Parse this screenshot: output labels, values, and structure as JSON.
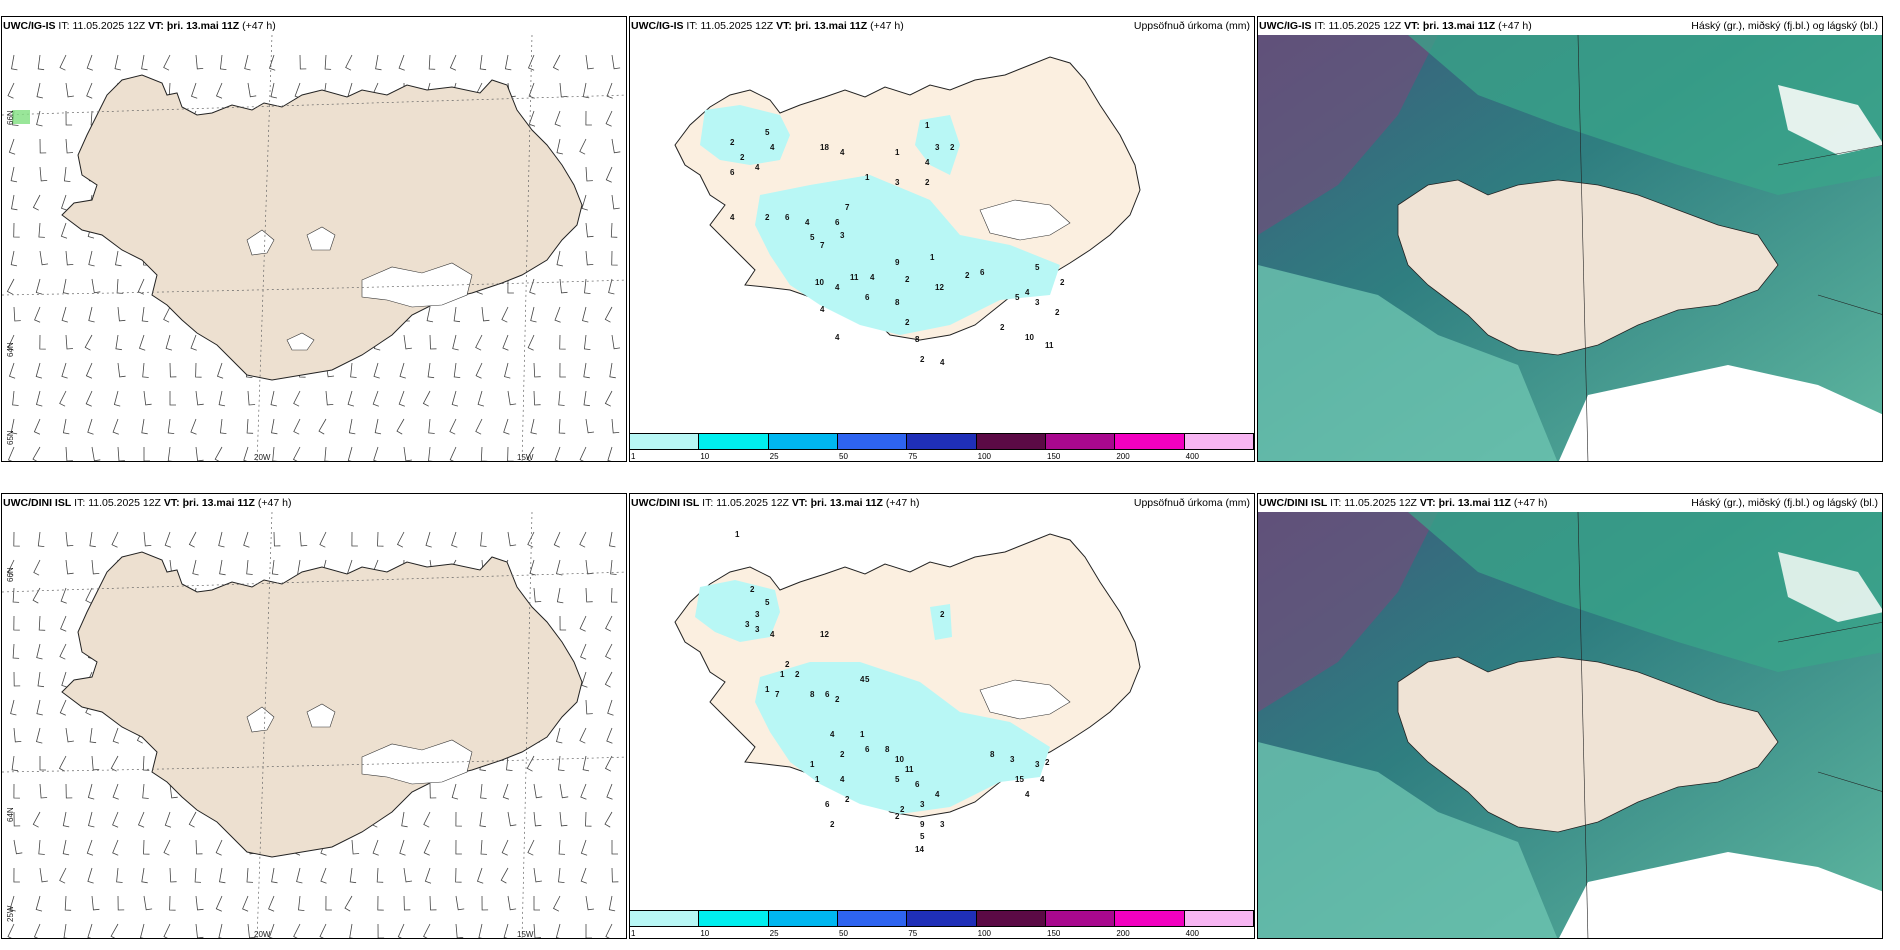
{
  "rows": [
    {
      "model": "UWC/IG-IS",
      "it_label": "IT:",
      "it_value": "11.05.2025 12Z",
      "vt_label": "VT:",
      "vt_value": "þri. 13.mai 11Z",
      "lead": "(+47 h)"
    },
    {
      "model": "UWC/DINI ISL",
      "it_label": "IT:",
      "it_value": "11.05.2025 12Z",
      "vt_label": "VT:",
      "vt_value": "þri. 13.mai 11Z",
      "lead": "(+47 h)"
    }
  ],
  "precip_title": "Uppsöfnuð úrkoma (mm)",
  "cloud_title": "Háský (gr.), miðský (fj.bl.) og lágský (bl.)",
  "grid_labels": {
    "lat66": "66N",
    "lat64": "64N",
    "lat65": "65N",
    "lon20": "20W",
    "lon15": "15W",
    "lon25": "25W",
    "lat66b": "66N",
    "lat64b": "64N"
  },
  "colorbar": {
    "colors": [
      "#b8f7f5",
      "#00efef",
      "#00b7f0",
      "#2e64f0",
      "#1f2fb8",
      "#5b0a45",
      "#a8088e",
      "#f200c0",
      "#f7b5f2"
    ],
    "ticks": [
      "1",
      "10",
      "25",
      "50",
      "75",
      "100",
      "150",
      "200",
      "400"
    ]
  },
  "precip_values_top": [
    "2",
    "5",
    "4",
    "2",
    "4",
    "18",
    "4",
    "6",
    "1",
    "3",
    "1",
    "4",
    "2",
    "3",
    "2",
    "1",
    "4",
    "2",
    "6",
    "4",
    "5",
    "6",
    "7",
    "3",
    "7",
    "11",
    "9",
    "4",
    "10",
    "4",
    "4",
    "6",
    "8",
    "2",
    "4",
    "12",
    "2",
    "2",
    "1",
    "6",
    "4",
    "3",
    "5",
    "2",
    "5",
    "2",
    "10",
    "2",
    "11",
    "8",
    "2",
    "4"
  ],
  "precip_values_bottom": [
    "1",
    "2",
    "5",
    "3",
    "3",
    "3",
    "4",
    "12",
    "2",
    "1",
    "2",
    "1",
    "5",
    "2",
    "7",
    "8",
    "6",
    "4",
    "2",
    "1",
    "4",
    "2",
    "6",
    "8",
    "10",
    "5",
    "11",
    "6",
    "3",
    "4",
    "2",
    "2",
    "6",
    "2",
    "1",
    "1",
    "4",
    "9",
    "3",
    "5",
    "2",
    "14",
    "8",
    "3",
    "3",
    "15",
    "4",
    "2",
    "4"
  ]
}
